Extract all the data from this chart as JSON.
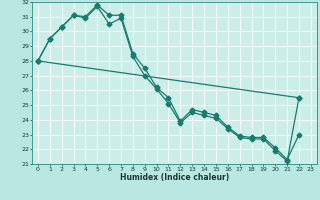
{
  "title": "",
  "xlabel": "Humidex (Indice chaleur)",
  "ylabel": "",
  "bg_color": "#b8e8e0",
  "plot_bg_color": "#cceee8",
  "grid_color": "#ffffff",
  "line_color": "#1a7a6e",
  "xlim": [
    -0.5,
    23.5
  ],
  "ylim": [
    21,
    32
  ],
  "xticks": [
    0,
    1,
    2,
    3,
    4,
    5,
    6,
    7,
    8,
    9,
    10,
    11,
    12,
    13,
    14,
    15,
    16,
    17,
    18,
    19,
    20,
    21,
    22,
    23
  ],
  "yticks": [
    21,
    22,
    23,
    24,
    25,
    26,
    27,
    28,
    29,
    30,
    31,
    32
  ],
  "line1_x": [
    0,
    1,
    2,
    3,
    4,
    5,
    6,
    7,
    8,
    9,
    10,
    11,
    12,
    13,
    14,
    15,
    16,
    17,
    18,
    19,
    20,
    21,
    22
  ],
  "line1_y": [
    28,
    29.5,
    30.3,
    31.1,
    31.0,
    31.8,
    31.1,
    31.1,
    28.5,
    27.5,
    26.2,
    25.5,
    23.9,
    24.7,
    24.5,
    24.3,
    23.5,
    22.9,
    22.8,
    22.8,
    22.1,
    21.3,
    23.0
  ],
  "line2_x": [
    0,
    1,
    2,
    3,
    4,
    5,
    6,
    7,
    8,
    9,
    10,
    11,
    12,
    13,
    14,
    15,
    16,
    17,
    18,
    19,
    20,
    21,
    22
  ],
  "line2_y": [
    28,
    29.5,
    30.3,
    31.1,
    30.9,
    31.7,
    30.5,
    30.9,
    28.3,
    27.0,
    26.1,
    25.1,
    23.8,
    24.5,
    24.3,
    24.1,
    23.4,
    22.8,
    22.7,
    22.7,
    21.9,
    21.2,
    25.5
  ],
  "line3_x": [
    0,
    22
  ],
  "line3_y": [
    28,
    25.5
  ]
}
